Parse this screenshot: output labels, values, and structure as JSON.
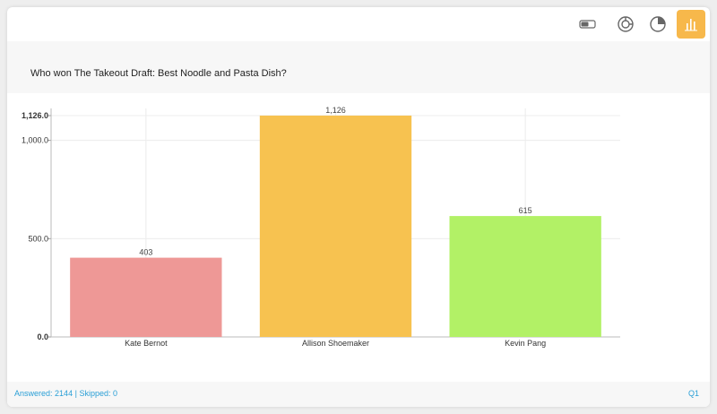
{
  "toolbar": {
    "buttons": [
      {
        "icon": "toggle-icon",
        "active": false
      },
      {
        "icon": "donut-chart-icon",
        "active": false
      },
      {
        "icon": "pie-chart-icon",
        "active": false
      },
      {
        "icon": "bar-chart-icon",
        "active": true
      }
    ],
    "accent_color": "#f7b84b"
  },
  "question": {
    "title": "Who won The Takeout Draft: Best Noodle and Pasta Dish?"
  },
  "chart_data": {
    "type": "bar",
    "categories": [
      "Kate Bernot",
      "Allison Shoemaker",
      "Kevin Pang"
    ],
    "values": [
      403,
      1126,
      615
    ],
    "value_labels": [
      "403",
      "1,126",
      "615"
    ],
    "colors": [
      "#ee9896",
      "#f7c250",
      "#b2f166"
    ],
    "ylim": [
      0,
      1126
    ],
    "yticks": [
      {
        "value": 0,
        "label": "0.0",
        "bold": true
      },
      {
        "value": 500,
        "label": "500.0",
        "bold": false
      },
      {
        "value": 1000,
        "label": "1,000.0",
        "bold": false
      },
      {
        "value": 1126,
        "label": "1,126.0",
        "bold": true
      }
    ],
    "grid": true,
    "title": "",
    "xlabel": "",
    "ylabel": ""
  },
  "footer": {
    "answered_label": "Answered:",
    "answered_value": "2144",
    "separator": "|",
    "skipped_label": "Skipped:",
    "skipped_value": "0",
    "question_ref": "Q1"
  }
}
